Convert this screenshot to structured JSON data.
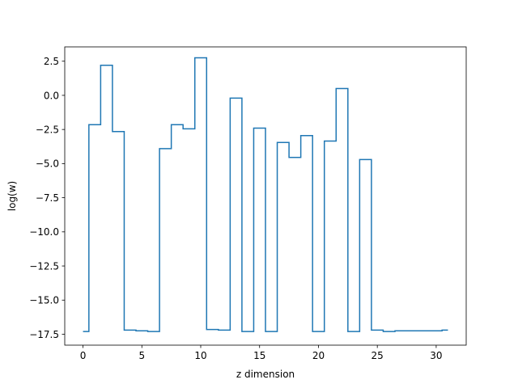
{
  "chart_data": {
    "type": "line",
    "drawstyle": "steps-mid",
    "title": "",
    "xlabel": "z dimension",
    "ylabel": "log(w)",
    "xlim": [
      -1.55,
      32.55
    ],
    "ylim": [
      -18.3,
      3.55
    ],
    "grid": false,
    "legend": "none",
    "x_ticks": [
      0,
      5,
      10,
      15,
      20,
      25,
      30
    ],
    "x_tick_labels": [
      "0",
      "5",
      "10",
      "15",
      "20",
      "25",
      "30"
    ],
    "y_ticks": [
      2.5,
      0.0,
      -2.5,
      -5.0,
      -7.5,
      -10.0,
      -12.5,
      -15.0,
      -17.5
    ],
    "y_tick_labels": [
      "2.5",
      "0.0",
      "−2.5",
      "−5.0",
      "−7.5",
      "−10.0",
      "−12.5",
      "−15.0",
      "−17.5"
    ],
    "series": [
      {
        "color": "#1f77b4",
        "x": [
          0,
          1,
          2,
          3,
          4,
          5,
          6,
          7,
          8,
          9,
          10,
          11,
          12,
          13,
          14,
          15,
          16,
          17,
          18,
          19,
          20,
          21,
          22,
          23,
          24,
          25,
          26,
          27,
          28,
          29,
          30,
          31
        ],
        "values": [
          -17.3,
          -2.15,
          2.2,
          -2.65,
          -17.2,
          -17.25,
          -17.3,
          -3.9,
          -2.15,
          -2.45,
          2.75,
          -17.15,
          -17.2,
          -0.2,
          -17.3,
          -2.4,
          -17.3,
          -3.45,
          -4.55,
          -2.95,
          -17.3,
          -3.35,
          0.5,
          -17.3,
          -4.7,
          -17.2,
          -17.3,
          -17.25,
          -17.25,
          -17.25,
          -17.25,
          -17.2
        ]
      }
    ]
  }
}
